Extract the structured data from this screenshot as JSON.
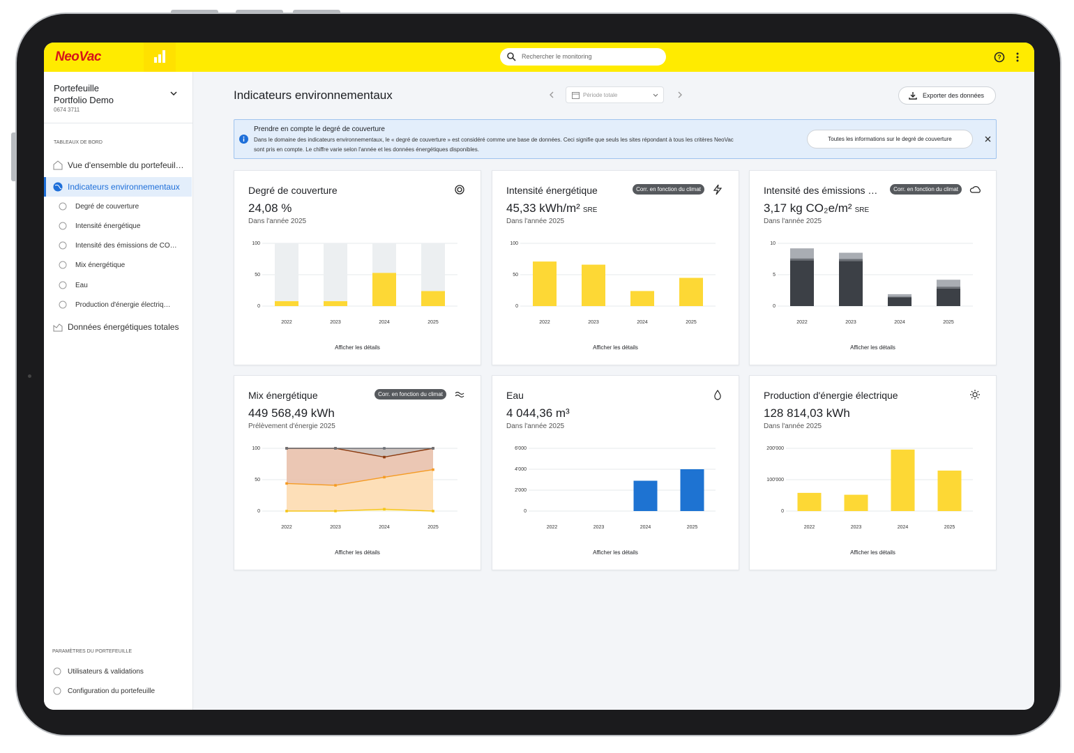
{
  "header": {
    "logo": "NeoVac",
    "search_placeholder": "Rechercher le monitoring"
  },
  "sidebar": {
    "portfolio_label": "Portefeuille",
    "portfolio_name": "Portfolio Demo",
    "portfolio_id": "0674 3711",
    "section_title": "TABLEAUX DE BORD",
    "nav": [
      "Vue d'ensemble du portefeuil…",
      "Indicateurs environnementaux"
    ],
    "subnav": [
      "Degré de couverture",
      "Intensité énergétique",
      "Intensité des émissions de CO…",
      "Mix énergétique",
      "Eau",
      "Production d'énergie électriq…"
    ],
    "nav_last": "Données énergétiques totales",
    "settings_title": "PARAMÈTRES DU PORTEFEUILLE",
    "settings": [
      "Utilisateurs & validations",
      "Configuration du portefeuille"
    ]
  },
  "main": {
    "title": "Indicateurs environnementaux",
    "period": "Période totale",
    "export": "Exporter des données"
  },
  "banner": {
    "title": "Prendre en compte le degré de couverture",
    "text_lines": [
      "Dans le domaine des indicateurs environnementaux, le « degré de couverture » est considéré comme une base de données. Ceci signifie que seuls les sites répondant à tous les critères NeoVac",
      "sont pris en compte. Le chiffre varie selon l'année et les données énergétiques disponibles."
    ],
    "button": "Toutes les informations sur le degré de couverture"
  },
  "cards": [
    {
      "title": "Degré de couverture",
      "value": "24,08 %",
      "subtitle": "Dans l'année 2025",
      "link": "Afficher les détails",
      "chart": {
        "type": "bar",
        "categories": [
          "2022",
          "2023",
          "2024",
          "2025"
        ],
        "ylim": [
          0,
          100
        ],
        "yticks": [
          0,
          50,
          100
        ],
        "series": [
          {
            "color": "#fdd835",
            "values": [
              8,
              8,
              53,
              24
            ]
          },
          {
            "color": "#eceff1",
            "values": [
              92,
              92,
              47,
              76
            ]
          }
        ]
      }
    },
    {
      "title": "Intensité énergétique",
      "badge": "Corr. en fonction du climat",
      "value": "45,33 kWh/m²",
      "unit": "SRE",
      "subtitle": "Dans l'année 2025",
      "link": "Afficher les détails",
      "chart": {
        "type": "bar",
        "categories": [
          "2022",
          "2023",
          "2024",
          "2025"
        ],
        "ylim": [
          0,
          100
        ],
        "yticks": [
          0,
          50,
          100
        ],
        "series": [
          {
            "color": "#fdd835",
            "values": [
              71,
              66,
              24,
              45
            ]
          }
        ]
      }
    },
    {
      "title": "Intensité des émissions …",
      "badge": "Corr. en fonction du climat",
      "value": "3,17 kg CO₂e/m²",
      "unit": "SRE",
      "subtitle": "Dans l'année 2025",
      "link": "Afficher les détails",
      "chart": {
        "type": "bar",
        "categories": [
          "2022",
          "2023",
          "2024",
          "2025"
        ],
        "ylim": [
          0,
          10
        ],
        "yticks": [
          0,
          5,
          10
        ],
        "series": [
          {
            "color": "#3c4046",
            "values": [
              7.3,
              7.2,
              1.4,
              2.8
            ]
          },
          {
            "color": "#6b6f75",
            "values": [
              0.3,
              0.3,
              0.1,
              0.3
            ]
          },
          {
            "color": "#a9adb3",
            "values": [
              1.6,
              1.0,
              0.4,
              1.1
            ]
          }
        ]
      }
    },
    {
      "title": "Mix énergétique",
      "badge": "Corr. en fonction du climat",
      "value": "449 568,49 kWh",
      "subtitle": "Prélèvement d'énergie 2025",
      "link": "Afficher les détails",
      "chart": {
        "type": "area",
        "categories": [
          "2022",
          "2023",
          "2024",
          "2025"
        ],
        "ylim": [
          0,
          100
        ],
        "yticks": [
          0,
          50,
          100
        ],
        "series": [
          {
            "color": "#f5c518",
            "values": [
              0,
              0,
              3,
              0
            ]
          },
          {
            "color": "#f59b23",
            "values": [
              44,
              41,
              51,
              66
            ]
          },
          {
            "color": "#8b3a0f",
            "values": [
              56,
              59,
              32,
              34
            ]
          },
          {
            "color": "#6b6f75",
            "values": [
              0,
              0,
              14,
              0
            ]
          }
        ]
      }
    },
    {
      "title": "Eau",
      "value": "4 044,36 m³",
      "subtitle": "Dans l'année 2025",
      "link": "Afficher les détails",
      "chart": {
        "type": "bar",
        "categories": [
          "2022",
          "2023",
          "2024",
          "2025"
        ],
        "ylim": [
          0,
          6000
        ],
        "yticks": [
          0,
          {
            "value": 2000,
            "label": "2'000"
          },
          {
            "value": 4000,
            "label": "4'000"
          },
          {
            "value": 6000,
            "label": "6'000"
          }
        ],
        "series": [
          {
            "color": "#1e73d2",
            "values": [
              0,
              0,
              2900,
              4000
            ]
          }
        ]
      }
    },
    {
      "title": "Production d'énergie électrique",
      "value": "128 814,03 kWh",
      "subtitle": "Dans l'année 2025",
      "link": "Afficher les détails",
      "chart": {
        "type": "bar",
        "categories": [
          "2022",
          "2023",
          "2024",
          "2025"
        ],
        "ylim": [
          0,
          200000
        ],
        "yticks": [
          0,
          {
            "value": 100000,
            "label": "100'000"
          },
          {
            "value": 200000,
            "label": "200'000"
          }
        ],
        "series": [
          {
            "color": "#fdd835",
            "values": [
              58000,
              52000,
              196000,
              129000
            ]
          }
        ]
      }
    }
  ]
}
